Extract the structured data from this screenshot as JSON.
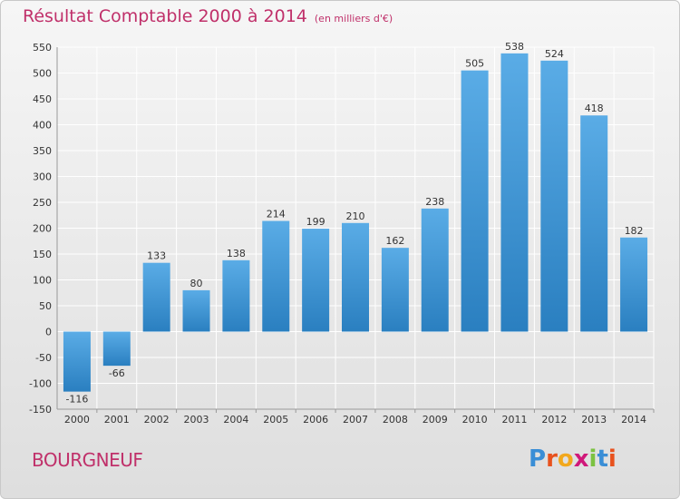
{
  "header": {
    "title": "Résultat Comptable 2000 à 2014",
    "unit": "(en milliers d'€)"
  },
  "footer": {
    "town": "BOURGNEUF",
    "logo_letters": [
      "P",
      "r",
      "o",
      "x",
      "i",
      "t",
      "i"
    ],
    "logo_colors": [
      "#3a8ed6",
      "#e8521e",
      "#f2a81d",
      "#d0187a",
      "#7cc242",
      "#3a8ed6",
      "#e8521e"
    ]
  },
  "colors": {
    "bar_top": "#5aace6",
    "bar_bottom": "#2a7fc0",
    "grid": "#ffffff",
    "title": "#c0306a"
  },
  "chart_data": {
    "type": "bar",
    "title": "Résultat Comptable 2000 à 2014",
    "subtitle": "(en milliers d'€)",
    "xlabel": "",
    "ylabel": "",
    "categories": [
      "2000",
      "2001",
      "2002",
      "2003",
      "2004",
      "2005",
      "2006",
      "2007",
      "2008",
      "2009",
      "2010",
      "2011",
      "2012",
      "2013",
      "2014"
    ],
    "values": [
      -116,
      -66,
      133,
      80,
      138,
      214,
      199,
      210,
      162,
      238,
      505,
      538,
      524,
      418,
      182
    ],
    "ylim": [
      -150,
      550
    ],
    "yticks": [
      -150,
      -100,
      -50,
      0,
      50,
      100,
      150,
      200,
      250,
      300,
      350,
      400,
      450,
      500,
      550
    ],
    "grid": true,
    "legend": "none"
  }
}
